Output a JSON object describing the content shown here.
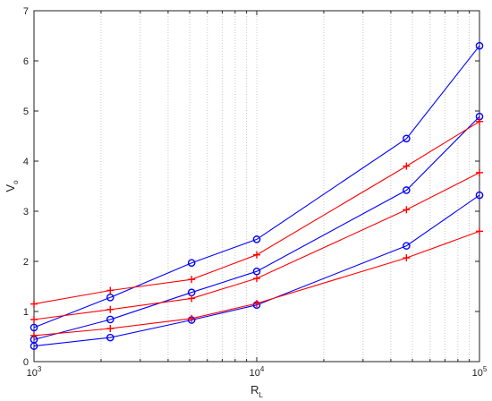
{
  "chart_data": {
    "type": "line",
    "title": "",
    "xlabel": "R",
    "xlabel_subscript": "L",
    "ylabel": "V",
    "ylabel_subscript": "o",
    "xscale": "log",
    "xlim": [
      1000,
      100000
    ],
    "ylim": [
      0,
      7
    ],
    "grid": "x-major-and-minor-dotted",
    "x_ticks": [
      {
        "base": "10",
        "exp": "3"
      },
      {
        "base": "10",
        "exp": "4"
      },
      {
        "base": "10",
        "exp": "5"
      }
    ],
    "y_ticks": [
      "0",
      "1",
      "2",
      "3",
      "4",
      "5",
      "6",
      "7"
    ],
    "series": [
      {
        "color": "#0000ff",
        "marker": "circle",
        "x": [
          1000,
          2200,
          5100,
          10000,
          47000,
          100000
        ],
        "y": [
          0.68,
          1.28,
          1.97,
          2.44,
          4.45,
          6.3
        ]
      },
      {
        "color": "#0000ff",
        "marker": "circle",
        "x": [
          1000,
          2200,
          5100,
          10000,
          47000,
          100000
        ],
        "y": [
          0.44,
          0.84,
          1.38,
          1.8,
          3.42,
          4.89
        ]
      },
      {
        "color": "#0000ff",
        "marker": "circle",
        "x": [
          1000,
          2200,
          5100,
          10000,
          47000,
          100000
        ],
        "y": [
          0.31,
          0.48,
          0.83,
          1.13,
          2.31,
          3.32
        ]
      },
      {
        "color": "#ff0000",
        "marker": "plus",
        "x": [
          1000,
          2200,
          5100,
          10000,
          47000,
          100000
        ],
        "y": [
          1.15,
          1.42,
          1.64,
          2.13,
          3.9,
          4.79
        ]
      },
      {
        "color": "#ff0000",
        "marker": "plus",
        "x": [
          1000,
          2200,
          5100,
          10000,
          47000,
          100000
        ],
        "y": [
          0.84,
          1.04,
          1.26,
          1.66,
          3.03,
          3.77
        ]
      },
      {
        "color": "#ff0000",
        "marker": "plus",
        "x": [
          1000,
          2200,
          5100,
          10000,
          47000,
          100000
        ],
        "y": [
          0.52,
          0.66,
          0.86,
          1.16,
          2.07,
          2.6
        ]
      }
    ]
  }
}
